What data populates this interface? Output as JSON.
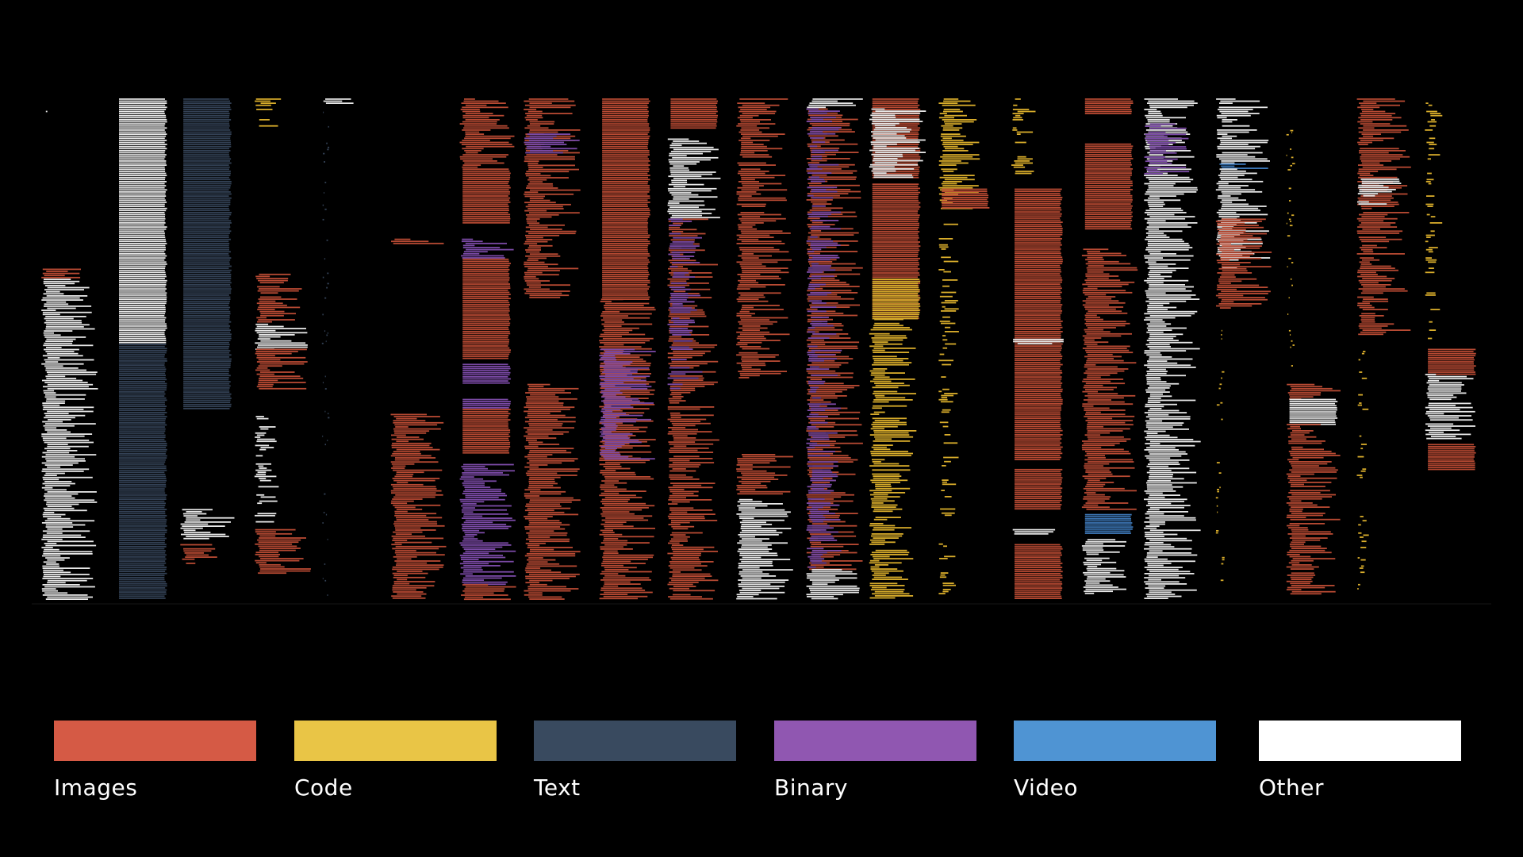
{
  "chart_data": {
    "type": "bar",
    "colors": {
      "Images": "#d55a45",
      "Code": "#e9c546",
      "Text": "#394a5f",
      "Binary": "#9057b1",
      "Video": "#4f94d3",
      "Other": "#ffffff"
    },
    "legend_placement": "bottom",
    "legend": [
      "Images",
      "Code",
      "Text",
      "Binary",
      "Video",
      "Other"
    ],
    "columns": [
      {
        "blocks": [
          {
            "category": "Other",
            "from": 0.0,
            "to": 0.03,
            "fill": 0.05
          },
          {
            "category": "Images",
            "from": 0.34,
            "to": 0.36,
            "fill": 0.9
          },
          {
            "category": "Other",
            "from": 0.36,
            "to": 1.0,
            "fill": 0.85
          }
        ]
      },
      {
        "blocks": [
          {
            "category": "Other",
            "from": 0.0,
            "to": 0.49,
            "fill": 0.95
          },
          {
            "category": "Text",
            "from": 0.49,
            "to": 1.0,
            "fill": 0.95
          }
        ]
      },
      {
        "blocks": [
          {
            "category": "Text",
            "from": 0.0,
            "to": 0.62,
            "fill": 0.95
          },
          {
            "category": "Other",
            "from": 0.82,
            "to": 0.88,
            "fill": 0.8
          },
          {
            "category": "Images",
            "from": 0.89,
            "to": 0.93,
            "fill": 0.6
          }
        ]
      },
      {
        "blocks": [
          {
            "category": "Code",
            "from": 0.0,
            "to": 0.06,
            "fill": 0.4
          },
          {
            "category": "Images",
            "from": 0.35,
            "to": 0.45,
            "fill": 0.7
          },
          {
            "category": "Other",
            "from": 0.45,
            "to": 0.5,
            "fill": 0.9
          },
          {
            "category": "Images",
            "from": 0.5,
            "to": 0.58,
            "fill": 0.9
          },
          {
            "category": "Other",
            "from": 0.63,
            "to": 0.86,
            "fill": 0.35
          },
          {
            "category": "Images",
            "from": 0.86,
            "to": 0.95,
            "fill": 0.85
          }
        ]
      },
      {
        "blocks": [
          {
            "category": "Other",
            "from": 0.0,
            "to": 0.01,
            "fill": 0.9
          },
          {
            "category": "Text",
            "from": 0.01,
            "to": 1.0,
            "fill": 0.03
          }
        ]
      },
      {
        "blocks": [
          {
            "category": "Images",
            "from": 0.28,
            "to": 0.29,
            "fill": 0.9
          },
          {
            "category": "Images",
            "from": 0.63,
            "to": 1.0,
            "fill": 0.85
          }
        ]
      },
      {
        "blocks": [
          {
            "category": "Images",
            "from": 0.0,
            "to": 0.14,
            "fill": 0.85
          },
          {
            "category": "Images",
            "from": 0.14,
            "to": 0.25,
            "fill": 0.95
          },
          {
            "category": "Binary",
            "from": 0.28,
            "to": 0.32,
            "fill": 0.9
          },
          {
            "category": "Images",
            "from": 0.32,
            "to": 0.52,
            "fill": 0.95
          },
          {
            "category": "Binary",
            "from": 0.53,
            "to": 0.57,
            "fill": 0.95
          },
          {
            "category": "Binary",
            "from": 0.6,
            "to": 0.62,
            "fill": 0.95
          },
          {
            "category": "Images",
            "from": 0.62,
            "to": 0.71,
            "fill": 0.95
          },
          {
            "category": "Binary",
            "from": 0.73,
            "to": 0.97,
            "fill": 0.9
          },
          {
            "category": "Images",
            "from": 0.97,
            "to": 1.0,
            "fill": 0.9
          }
        ]
      },
      {
        "blocks": [
          {
            "category": "Images",
            "from": 0.0,
            "to": 0.12,
            "fill": 0.9
          },
          {
            "category": "Binary",
            "from": 0.07,
            "to": 0.11,
            "fill": 0.9
          },
          {
            "category": "Images",
            "from": 0.12,
            "to": 0.4,
            "fill": 0.85
          },
          {
            "category": "Images",
            "from": 0.57,
            "to": 1.0,
            "fill": 0.9
          }
        ]
      },
      {
        "blocks": [
          {
            "category": "Images",
            "from": 0.0,
            "to": 0.4,
            "fill": 0.95
          },
          {
            "category": "Images",
            "from": 0.4,
            "to": 1.0,
            "fill": 0.9
          },
          {
            "category": "Binary",
            "from": 0.5,
            "to": 0.72,
            "fill": 0.85
          }
        ]
      },
      {
        "blocks": [
          {
            "category": "Images",
            "from": 0.0,
            "to": 0.06,
            "fill": 0.95
          },
          {
            "category": "Other",
            "from": 0.08,
            "to": 0.24,
            "fill": 0.8
          },
          {
            "category": "Images",
            "from": 0.24,
            "to": 1.0,
            "fill": 0.75
          },
          {
            "category": "Binary",
            "from": 0.24,
            "to": 0.58,
            "fill": 0.5
          }
        ]
      },
      {
        "blocks": [
          {
            "category": "Images",
            "from": 0.0,
            "to": 0.56,
            "fill": 0.8
          },
          {
            "category": "Images",
            "from": 0.71,
            "to": 0.79,
            "fill": 0.9
          },
          {
            "category": "Other",
            "from": 0.8,
            "to": 1.0,
            "fill": 0.9
          }
        ]
      },
      {
        "blocks": [
          {
            "category": "Other",
            "from": 0.0,
            "to": 0.02,
            "fill": 0.9
          },
          {
            "category": "Images",
            "from": 0.02,
            "to": 0.94,
            "fill": 0.85
          },
          {
            "category": "Binary",
            "from": 0.02,
            "to": 0.94,
            "fill": 0.5
          },
          {
            "category": "Other",
            "from": 0.94,
            "to": 1.0,
            "fill": 0.9
          }
        ]
      },
      {
        "blocks": [
          {
            "category": "Images",
            "from": 0.0,
            "to": 0.16,
            "fill": 0.95
          },
          {
            "category": "Other",
            "from": 0.02,
            "to": 0.16,
            "fill": 0.9
          },
          {
            "category": "Images",
            "from": 0.17,
            "to": 0.44,
            "fill": 0.95
          },
          {
            "category": "Code",
            "from": 0.36,
            "to": 0.44,
            "fill": 0.95
          },
          {
            "category": "Code",
            "from": 0.44,
            "to": 1.0,
            "fill": 0.7
          }
        ]
      },
      {
        "blocks": [
          {
            "category": "Code",
            "from": 0.0,
            "to": 0.22,
            "fill": 0.6
          },
          {
            "category": "Images",
            "from": 0.18,
            "to": 0.22,
            "fill": 0.95
          },
          {
            "category": "Code",
            "from": 0.25,
            "to": 1.0,
            "fill": 0.25
          }
        ]
      },
      {
        "blocks": [
          {
            "category": "Code",
            "from": 0.0,
            "to": 0.16,
            "fill": 0.3
          },
          {
            "category": "Images",
            "from": 0.18,
            "to": 0.72,
            "fill": 0.95
          },
          {
            "category": "Other",
            "from": 0.48,
            "to": 0.49,
            "fill": 0.95
          },
          {
            "category": "Images",
            "from": 0.74,
            "to": 0.82,
            "fill": 0.95
          },
          {
            "category": "Other",
            "from": 0.86,
            "to": 0.87,
            "fill": 0.95
          },
          {
            "category": "Images",
            "from": 0.89,
            "to": 1.0,
            "fill": 0.95
          }
        ]
      },
      {
        "blocks": [
          {
            "category": "Images",
            "from": 0.0,
            "to": 0.03,
            "fill": 0.95
          },
          {
            "category": "Images",
            "from": 0.09,
            "to": 0.26,
            "fill": 0.98
          },
          {
            "category": "Images",
            "from": 0.3,
            "to": 0.82,
            "fill": 0.85
          },
          {
            "category": "Video",
            "from": 0.83,
            "to": 0.87,
            "fill": 0.95
          },
          {
            "category": "Other",
            "from": 0.88,
            "to": 0.99,
            "fill": 0.75
          }
        ]
      },
      {
        "blocks": [
          {
            "category": "Other",
            "from": 0.0,
            "to": 1.0,
            "fill": 0.85
          },
          {
            "category": "Binary",
            "from": 0.05,
            "to": 0.15,
            "fill": 0.7
          }
        ]
      },
      {
        "blocks": [
          {
            "category": "Other",
            "from": 0.0,
            "to": 0.13,
            "fill": 0.8
          },
          {
            "category": "Video",
            "from": 0.13,
            "to": 0.14,
            "fill": 0.9
          },
          {
            "category": "Other",
            "from": 0.14,
            "to": 0.34,
            "fill": 0.8
          },
          {
            "category": "Images",
            "from": 0.24,
            "to": 0.42,
            "fill": 0.85
          },
          {
            "category": "Code",
            "from": 0.45,
            "to": 0.97,
            "fill": 0.05
          }
        ]
      },
      {
        "blocks": [
          {
            "category": "Code",
            "from": 0.03,
            "to": 0.56,
            "fill": 0.05
          },
          {
            "category": "Images",
            "from": 0.57,
            "to": 0.6,
            "fill": 0.9
          },
          {
            "category": "Other",
            "from": 0.6,
            "to": 0.65,
            "fill": 0.95
          },
          {
            "category": "Images",
            "from": 0.65,
            "to": 0.99,
            "fill": 0.8
          }
        ]
      },
      {
        "blocks": [
          {
            "category": "Images",
            "from": 0.0,
            "to": 0.47,
            "fill": 0.8
          },
          {
            "category": "Other",
            "from": 0.16,
            "to": 0.21,
            "fill": 0.7
          },
          {
            "category": "Code",
            "from": 0.5,
            "to": 0.98,
            "fill": 0.1
          }
        ]
      },
      {
        "blocks": [
          {
            "category": "Code",
            "from": 0.0,
            "to": 0.48,
            "fill": 0.2
          },
          {
            "category": "Images",
            "from": 0.5,
            "to": 0.55,
            "fill": 0.95
          },
          {
            "category": "Other",
            "from": 0.55,
            "to": 0.68,
            "fill": 0.8
          },
          {
            "category": "Images",
            "from": 0.69,
            "to": 0.74,
            "fill": 0.98
          }
        ]
      }
    ]
  },
  "legend": {
    "items": [
      {
        "label": "Images",
        "color": "#d55a45"
      },
      {
        "label": "Code",
        "color": "#e9c546"
      },
      {
        "label": "Text",
        "color": "#394a5f"
      },
      {
        "label": "Binary",
        "color": "#9057b1"
      },
      {
        "label": "Video",
        "color": "#4f94d3"
      },
      {
        "label": "Other",
        "color": "#ffffff"
      }
    ]
  }
}
